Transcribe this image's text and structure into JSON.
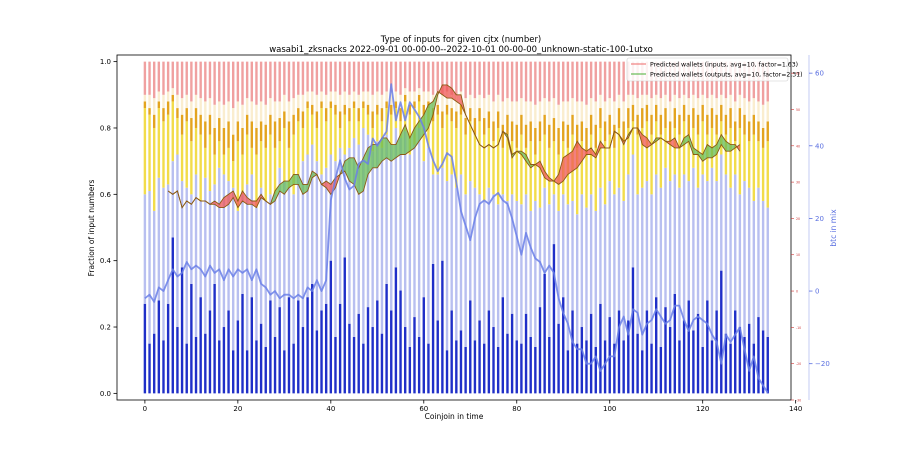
{
  "chart_data": {
    "type": "bar",
    "title": "Type of inputs for given cjtx (number)",
    "subtitle": "wasabi1_zksnacks 2022-09-01 00-00-00--2022-10-01 00-00-00_unknown-static-100-1utxo",
    "xlabel": "Coinjoin in time",
    "ylabel": "Fraction of input numbers",
    "ylabel_right": "btc in mix",
    "xlim": [
      -6,
      139
    ],
    "ylim": [
      -0.02,
      1.02
    ],
    "ylim_right": [
      -30,
      65
    ],
    "x_ticks": [
      0,
      20,
      40,
      60,
      80,
      100,
      120,
      140
    ],
    "y_ticks": [
      0.0,
      0.2,
      0.4,
      0.6,
      0.8,
      1.0
    ],
    "y_ticks_right": [
      -20,
      0,
      20,
      40,
      60
    ],
    "y_ticks_right_minor": [
      -30,
      -20,
      -10,
      0,
      10,
      20,
      30,
      40,
      50,
      60
    ],
    "legend": {
      "position": "top-right",
      "entries": [
        {
          "label": "Predicted wallets (inputs, avg=10, factor=1.63)",
          "color": "#f08080"
        },
        {
          "label": "Predicted wallets (outputs, avg=10, factor=2.31)",
          "color": "#66bb55"
        }
      ]
    },
    "colors": {
      "fresh_input": "#1f2fc8",
      "remix_input": "#b8bff0",
      "friends_input": "#f2dc4a",
      "other_input": "#e3a41f",
      "pale_input": "#faedcf",
      "top_input": "#f0a0a0",
      "btc_line": "#6a7fe8",
      "inputs_fill": "#ee5555",
      "outputs_fill": "#66bb55",
      "wallet_line": "#8b5a14"
    },
    "stacks": {
      "fresh": [
        0.27,
        0.15,
        0.18,
        0.28,
        0.16,
        0.27,
        0.47,
        0.2,
        0.38,
        0.15,
        0.33,
        0.17,
        0.29,
        0.18,
        0.25,
        0.33,
        0.16,
        0.2,
        0.25,
        0.13,
        0.22,
        0.3,
        0.13,
        0.29,
        0.16,
        0.21,
        0.14,
        0.28,
        0.17,
        0.26,
        0.13,
        0.29,
        0.15,
        0.28,
        0.2,
        0.29,
        0.33,
        0.19,
        0.25,
        0.27,
        0.4,
        0.17,
        0.27,
        0.41,
        0.21,
        0.17,
        0.24,
        0.15,
        0.26,
        0.2,
        0.28,
        0.18,
        0.33,
        0.25,
        0.38,
        0.31,
        0.2,
        0.14,
        0.23,
        0.17,
        0.29,
        0.15,
        0.39,
        0.22,
        0.4,
        0.13,
        0.25,
        0.16,
        0.19,
        0.14,
        0.28,
        0.16,
        0.22,
        0.15,
        0.25,
        0.2,
        0.14,
        0.29,
        0.18,
        0.24,
        0.16,
        0.15,
        0.24,
        0.17,
        0.14,
        0.26,
        0.36,
        0.17,
        0.45,
        0.21,
        0.29,
        0.13,
        0.25,
        0.15,
        0.2,
        0.16,
        0.24,
        0.14,
        0.27,
        0.16,
        0.23,
        0.15,
        0.25,
        0.16,
        0.22,
        0.38,
        0.18,
        0.13,
        0.25,
        0.15,
        0.29,
        0.14,
        0.26,
        0.2,
        0.3,
        0.16,
        0.22,
        0.28,
        0.19,
        0.24,
        0.14,
        0.28,
        0.16,
        0.25,
        0.37,
        0.18,
        0.15,
        0.25,
        0.2,
        0.17,
        0.21,
        0.15,
        0.23,
        0.19,
        0.17
      ],
      "remix": [
        0.6,
        0.61,
        0.55,
        0.65,
        0.62,
        0.63,
        0.7,
        0.72,
        0.64,
        0.62,
        0.6,
        0.66,
        0.58,
        0.65,
        0.61,
        0.63,
        0.68,
        0.66,
        0.64,
        0.62,
        0.55,
        0.6,
        0.63,
        0.66,
        0.56,
        0.62,
        0.58,
        0.6,
        0.6,
        0.68,
        0.64,
        0.62,
        0.6,
        0.66,
        0.7,
        0.72,
        0.75,
        0.7,
        0.66,
        0.68,
        0.72,
        0.7,
        0.74,
        0.72,
        0.74,
        0.77,
        0.75,
        0.8,
        0.78,
        0.73,
        0.76,
        0.74,
        0.78,
        0.75,
        0.8,
        0.77,
        0.79,
        0.72,
        0.75,
        0.8,
        0.7,
        0.74,
        0.66,
        0.66,
        0.68,
        0.64,
        0.66,
        0.62,
        0.66,
        0.6,
        0.64,
        0.62,
        0.6,
        0.58,
        0.62,
        0.6,
        0.57,
        0.6,
        0.58,
        0.6,
        0.58,
        0.57,
        0.6,
        0.55,
        0.58,
        0.56,
        0.62,
        0.57,
        0.6,
        0.55,
        0.6,
        0.57,
        0.58,
        0.54,
        0.6,
        0.56,
        0.6,
        0.55,
        0.62,
        0.57,
        0.64,
        0.6,
        0.62,
        0.58,
        0.66,
        0.72,
        0.6,
        0.62,
        0.64,
        0.6,
        0.66,
        0.62,
        0.68,
        0.64,
        0.66,
        0.62,
        0.66,
        0.64,
        0.68,
        0.62,
        0.66,
        0.64,
        0.68,
        0.64,
        0.72,
        0.66,
        0.62,
        0.66,
        0.6,
        0.64,
        0.62,
        0.58,
        0.62,
        0.58,
        0.56
      ],
      "friends": [
        0.86,
        0.84,
        0.8,
        0.86,
        0.82,
        0.84,
        0.88,
        0.83,
        0.78,
        0.82,
        0.76,
        0.8,
        0.78,
        0.74,
        0.78,
        0.72,
        0.76,
        0.72,
        0.74,
        0.7,
        0.76,
        0.72,
        0.78,
        0.74,
        0.72,
        0.76,
        0.74,
        0.78,
        0.74,
        0.76,
        0.8,
        0.74,
        0.78,
        0.82,
        0.8,
        0.86,
        0.84,
        0.8,
        0.86,
        0.82,
        0.86,
        0.84,
        0.8,
        0.84,
        0.82,
        0.86,
        0.82,
        0.86,
        0.84,
        0.8,
        0.84,
        0.82,
        0.86,
        0.84,
        0.86,
        0.82,
        0.88,
        0.84,
        0.86,
        0.88,
        0.84,
        0.86,
        0.82,
        0.84,
        0.8,
        0.84,
        0.82,
        0.8,
        0.84,
        0.78,
        0.82,
        0.78,
        0.82,
        0.78,
        0.8,
        0.76,
        0.8,
        0.74,
        0.78,
        0.76,
        0.74,
        0.78,
        0.74,
        0.76,
        0.72,
        0.76,
        0.78,
        0.74,
        0.76,
        0.72,
        0.76,
        0.74,
        0.78,
        0.74,
        0.76,
        0.72,
        0.78,
        0.74,
        0.8,
        0.76,
        0.78,
        0.74,
        0.8,
        0.76,
        0.8,
        0.82,
        0.78,
        0.8,
        0.82,
        0.78,
        0.82,
        0.78,
        0.8,
        0.76,
        0.8,
        0.78,
        0.82,
        0.78,
        0.8,
        0.78,
        0.82,
        0.78,
        0.8,
        0.78,
        0.82,
        0.78,
        0.8,
        0.76,
        0.8,
        0.78,
        0.76,
        0.78,
        0.76,
        0.74,
        0.76
      ],
      "other": [
        0.88,
        0.86,
        0.84,
        0.88,
        0.86,
        0.88,
        0.9,
        0.86,
        0.84,
        0.86,
        0.83,
        0.86,
        0.84,
        0.82,
        0.84,
        0.8,
        0.83,
        0.8,
        0.82,
        0.78,
        0.82,
        0.8,
        0.84,
        0.82,
        0.8,
        0.82,
        0.81,
        0.84,
        0.82,
        0.83,
        0.85,
        0.82,
        0.84,
        0.86,
        0.85,
        0.88,
        0.87,
        0.85,
        0.88,
        0.86,
        0.88,
        0.87,
        0.85,
        0.87,
        0.86,
        0.88,
        0.86,
        0.88,
        0.87,
        0.85,
        0.87,
        0.86,
        0.88,
        0.87,
        0.88,
        0.86,
        0.9,
        0.87,
        0.88,
        0.9,
        0.87,
        0.88,
        0.86,
        0.87,
        0.85,
        0.87,
        0.86,
        0.85,
        0.87,
        0.83,
        0.86,
        0.83,
        0.86,
        0.83,
        0.85,
        0.82,
        0.85,
        0.81,
        0.84,
        0.82,
        0.81,
        0.84,
        0.81,
        0.82,
        0.8,
        0.82,
        0.84,
        0.81,
        0.83,
        0.8,
        0.82,
        0.81,
        0.84,
        0.81,
        0.82,
        0.8,
        0.84,
        0.81,
        0.86,
        0.82,
        0.84,
        0.81,
        0.86,
        0.82,
        0.86,
        0.87,
        0.84,
        0.86,
        0.87,
        0.84,
        0.87,
        0.84,
        0.86,
        0.82,
        0.86,
        0.84,
        0.87,
        0.84,
        0.86,
        0.84,
        0.87,
        0.84,
        0.86,
        0.84,
        0.87,
        0.84,
        0.86,
        0.82,
        0.86,
        0.84,
        0.82,
        0.84,
        0.82,
        0.8,
        0.82
      ],
      "pale": [
        0.9,
        0.9,
        0.89,
        0.91,
        0.9,
        0.91,
        0.92,
        0.9,
        0.89,
        0.9,
        0.88,
        0.9,
        0.89,
        0.88,
        0.89,
        0.87,
        0.88,
        0.87,
        0.88,
        0.86,
        0.88,
        0.87,
        0.89,
        0.88,
        0.87,
        0.88,
        0.87,
        0.89,
        0.88,
        0.88,
        0.9,
        0.88,
        0.89,
        0.9,
        0.9,
        0.91,
        0.91,
        0.9,
        0.91,
        0.9,
        0.91,
        0.91,
        0.9,
        0.91,
        0.9,
        0.91,
        0.9,
        0.91,
        0.91,
        0.9,
        0.91,
        0.9,
        0.91,
        0.91,
        0.91,
        0.9,
        0.92,
        0.91,
        0.91,
        0.92,
        0.91,
        0.91,
        0.9,
        0.91,
        0.9,
        0.91,
        0.9,
        0.9,
        0.91,
        0.89,
        0.9,
        0.89,
        0.9,
        0.89,
        0.9,
        0.88,
        0.9,
        0.88,
        0.89,
        0.88,
        0.88,
        0.89,
        0.88,
        0.88,
        0.87,
        0.88,
        0.89,
        0.88,
        0.89,
        0.87,
        0.88,
        0.88,
        0.89,
        0.88,
        0.88,
        0.87,
        0.89,
        0.88,
        0.9,
        0.88,
        0.89,
        0.88,
        0.9,
        0.88,
        0.9,
        0.9,
        0.89,
        0.9,
        0.9,
        0.89,
        0.9,
        0.89,
        0.9,
        0.88,
        0.9,
        0.89,
        0.9,
        0.89,
        0.9,
        0.89,
        0.9,
        0.89,
        0.9,
        0.89,
        0.9,
        0.89,
        0.9,
        0.88,
        0.9,
        0.89,
        0.88,
        0.89,
        0.88,
        0.87,
        0.88
      ]
    },
    "btc_in_mix": [
      -2,
      -1,
      -3,
      1,
      0,
      3,
      6,
      4,
      5,
      8,
      6,
      7,
      6,
      4,
      7,
      5,
      6,
      3,
      6,
      4,
      6,
      5,
      6,
      3,
      6,
      2,
      1,
      -1,
      0,
      -2,
      -1,
      -1,
      -2,
      -1,
      -2,
      1,
      0,
      3,
      0,
      3,
      25,
      31,
      36,
      31,
      28,
      29,
      35,
      36,
      35,
      42,
      40,
      42,
      44,
      57,
      47,
      52,
      47,
      52,
      50,
      48,
      45,
      40,
      36,
      33,
      35,
      38,
      37,
      30,
      22,
      18,
      14,
      20,
      24,
      25,
      24,
      26,
      27,
      25,
      24,
      20,
      15,
      10,
      16,
      12,
      9,
      8,
      5,
      7,
      5,
      -2,
      -6,
      -9,
      -14,
      -16,
      -16,
      -20,
      -20,
      -18,
      -22,
      -20,
      -18,
      -18,
      -10,
      -7,
      -12,
      -5,
      -6,
      -12,
      -9,
      -8,
      -5,
      -7,
      -9,
      -8,
      -4,
      -4,
      -8,
      -11,
      -8,
      -7,
      -8,
      -9,
      -12,
      -14,
      -20,
      -12,
      -14,
      -12,
      -10,
      -16,
      -22,
      -18,
      -24,
      -26,
      -28
    ],
    "wallets_start": 5,
    "inputs_wallets": [
      0.61,
      0.6,
      0.61,
      0.56,
      0.58,
      0.57,
      0.59,
      0.58,
      0.58,
      0.57,
      0.58,
      0.57,
      0.59,
      0.6,
      0.61,
      0.58,
      0.61,
      0.59,
      0.58,
      0.58,
      0.6,
      0.58,
      0.57,
      0.58,
      0.61,
      0.6,
      0.62,
      0.63,
      0.63,
      0.6,
      0.61,
      0.65,
      0.66,
      0.63,
      0.64,
      0.63,
      0.65,
      0.66,
      0.67,
      0.64,
      0.63,
      0.6,
      0.61,
      0.66,
      0.68,
      0.68,
      0.7,
      0.71,
      0.7,
      0.71,
      0.72,
      0.72,
      0.73,
      0.74,
      0.76,
      0.78,
      0.8,
      0.84,
      0.9,
      0.93,
      0.93,
      0.92,
      0.9,
      0.9,
      0.84,
      0.81,
      0.78,
      0.75,
      0.74,
      0.75,
      0.74,
      0.75,
      0.79,
      0.77,
      0.71,
      0.73,
      0.72,
      0.7,
      0.68,
      0.69,
      0.7,
      0.67,
      0.65,
      0.64,
      0.66,
      0.71,
      0.72,
      0.73,
      0.76,
      0.74,
      0.73,
      0.74,
      0.72,
      0.76,
      0.74,
      0.74,
      0.79,
      0.78,
      0.76,
      0.77,
      0.8,
      0.8,
      0.78,
      0.77,
      0.75,
      0.76,
      0.77,
      0.76,
      0.76,
      0.77,
      0.74,
      0.75,
      0.76,
      0.72,
      0.72,
      0.7,
      0.71,
      0.71,
      0.72,
      0.75,
      0.73,
      0.73,
      0.74,
      0.75
    ],
    "outputs_wallets": [
      0.61,
      0.6,
      0.61,
      0.56,
      0.58,
      0.57,
      0.59,
      0.58,
      0.58,
      0.57,
      0.57,
      0.56,
      0.56,
      0.57,
      0.59,
      0.56,
      0.58,
      0.57,
      0.57,
      0.56,
      0.59,
      0.58,
      0.57,
      0.61,
      0.63,
      0.64,
      0.64,
      0.66,
      0.66,
      0.63,
      0.63,
      0.67,
      0.66,
      0.63,
      0.62,
      0.6,
      0.62,
      0.66,
      0.7,
      0.71,
      0.71,
      0.68,
      0.71,
      0.74,
      0.75,
      0.75,
      0.77,
      0.77,
      0.75,
      0.75,
      0.78,
      0.81,
      0.77,
      0.8,
      0.82,
      0.84,
      0.87,
      0.88,
      0.91,
      0.9,
      0.89,
      0.89,
      0.88,
      0.87,
      0.84,
      0.81,
      0.78,
      0.75,
      0.74,
      0.75,
      0.74,
      0.75,
      0.79,
      0.78,
      0.72,
      0.73,
      0.73,
      0.72,
      0.69,
      0.69,
      0.68,
      0.65,
      0.64,
      0.64,
      0.63,
      0.64,
      0.66,
      0.67,
      0.68,
      0.7,
      0.72,
      0.72,
      0.71,
      0.74,
      0.74,
      0.74,
      0.79,
      0.78,
      0.75,
      0.78,
      0.8,
      0.8,
      0.75,
      0.74,
      0.75,
      0.77,
      0.77,
      0.76,
      0.75,
      0.74,
      0.74,
      0.77,
      0.78,
      0.74,
      0.73,
      0.72,
      0.75,
      0.74,
      0.75,
      0.78,
      0.76,
      0.75,
      0.75,
      0.73
    ]
  }
}
